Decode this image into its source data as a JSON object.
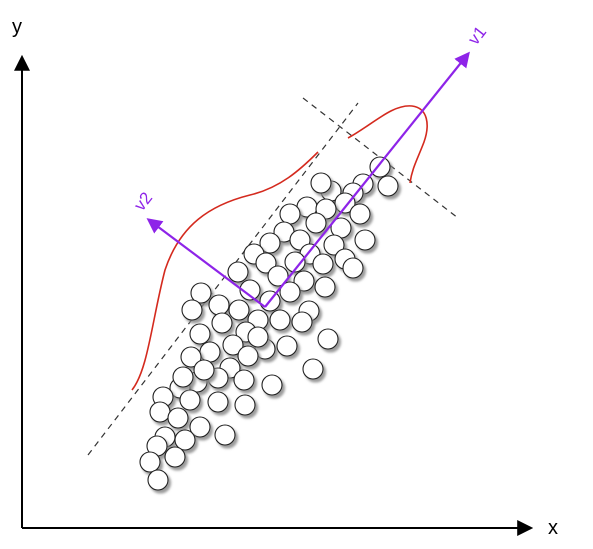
{
  "axes": {
    "x_label": "x",
    "y_label": "y",
    "color": "#000000"
  },
  "vectors": {
    "v1_label": "v1",
    "v2_label": "v2",
    "color": "#8e24e8"
  },
  "distribution_curve_color": "#d42a1e",
  "projection_line_color": "#333333",
  "point_style": {
    "fill": "#ffffff",
    "stroke": "#222222",
    "shadow": "#9a9a9a"
  }
}
